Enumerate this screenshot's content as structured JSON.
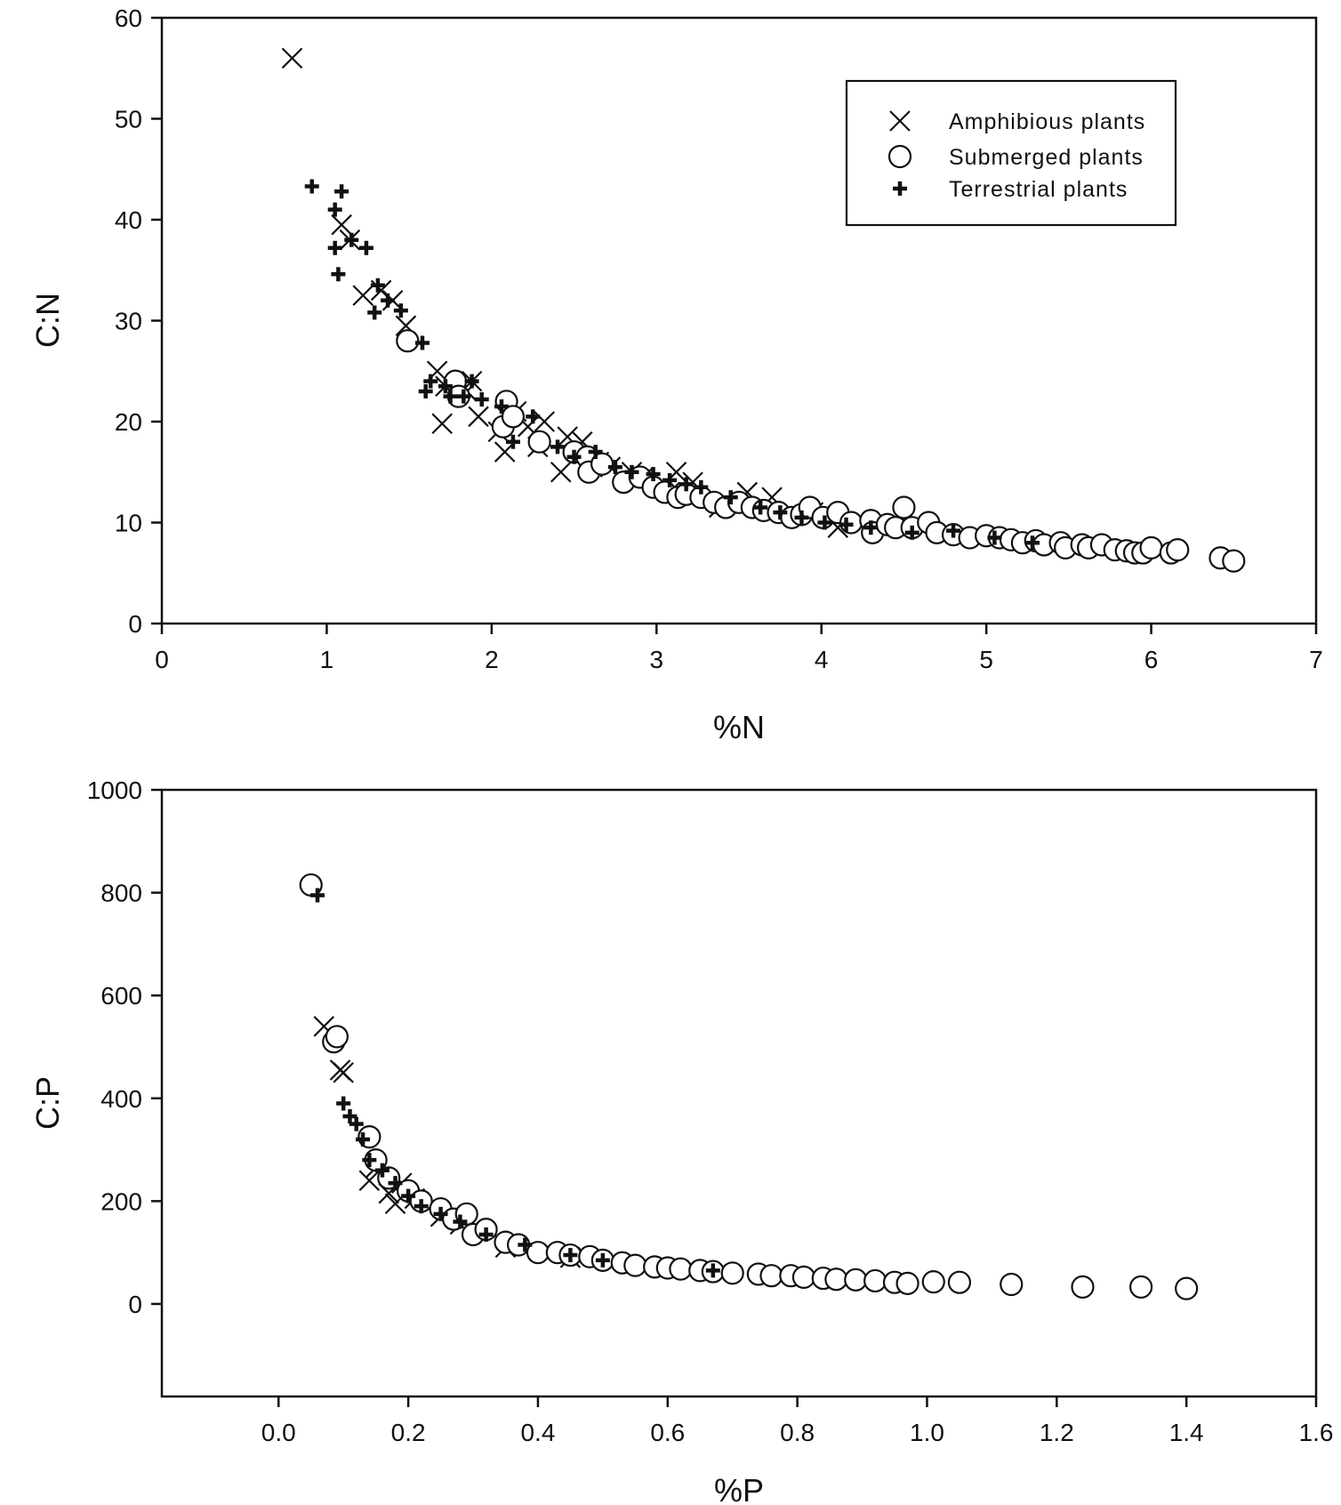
{
  "chart_data": [
    {
      "type": "scatter",
      "xlabel": "%N",
      "ylabel": "C:N",
      "xlim": [
        0,
        7
      ],
      "ylim": [
        0,
        60
      ],
      "xticks": [
        "0",
        "1",
        "2",
        "3",
        "4",
        "5",
        "6",
        "7"
      ],
      "yticks": [
        "0",
        "10",
        "20",
        "30",
        "40",
        "50",
        "60"
      ],
      "grid": false,
      "legend_position": "top-right",
      "series": [
        {
          "name": "Amphibious plants",
          "marker": "x",
          "points": [
            [
              0.79,
              56.0
            ],
            [
              1.09,
              39.5
            ],
            [
              1.14,
              38.0
            ],
            [
              1.22,
              32.5
            ],
            [
              1.33,
              33.0
            ],
            [
              1.4,
              32.0
            ],
            [
              1.48,
              29.5
            ],
            [
              1.67,
              25.0
            ],
            [
              1.7,
              19.8
            ],
            [
              1.72,
              23.5
            ],
            [
              1.85,
              23.0
            ],
            [
              1.88,
              24.0
            ],
            [
              1.92,
              20.5
            ],
            [
              2.04,
              19.0
            ],
            [
              2.08,
              17.0
            ],
            [
              2.15,
              21.0
            ],
            [
              2.22,
              19.5
            ],
            [
              2.28,
              17.5
            ],
            [
              2.32,
              20.0
            ],
            [
              2.42,
              15.0
            ],
            [
              2.46,
              18.5
            ],
            [
              2.55,
              18.0
            ],
            [
              2.65,
              16.0
            ],
            [
              2.72,
              15.5
            ],
            [
              2.85,
              15.0
            ],
            [
              2.92,
              14.5
            ],
            [
              3.08,
              13.0
            ],
            [
              3.12,
              15.0
            ],
            [
              3.22,
              14.0
            ],
            [
              3.38,
              11.5
            ],
            [
              3.55,
              13.0
            ],
            [
              3.7,
              12.5
            ],
            [
              3.95,
              11.0
            ],
            [
              4.1,
              9.5
            ]
          ]
        },
        {
          "name": "Submerged plants",
          "marker": "o",
          "points": [
            [
              1.49,
              28.0
            ],
            [
              1.78,
              24.0
            ],
            [
              1.8,
              22.5
            ],
            [
              2.07,
              19.5
            ],
            [
              2.09,
              22.0
            ],
            [
              2.13,
              20.5
            ],
            [
              2.29,
              18.0
            ],
            [
              2.5,
              17.0
            ],
            [
              2.58,
              16.5
            ],
            [
              2.59,
              15.0
            ],
            [
              2.67,
              15.8
            ],
            [
              2.8,
              14.0
            ],
            [
              2.9,
              14.5
            ],
            [
              2.98,
              13.5
            ],
            [
              3.05,
              13.0
            ],
            [
              3.13,
              12.5
            ],
            [
              3.18,
              12.8
            ],
            [
              3.27,
              12.5
            ],
            [
              3.35,
              12.0
            ],
            [
              3.42,
              11.5
            ],
            [
              3.5,
              12.0
            ],
            [
              3.58,
              11.5
            ],
            [
              3.65,
              11.2
            ],
            [
              3.74,
              11.0
            ],
            [
              3.82,
              10.5
            ],
            [
              3.88,
              10.8
            ],
            [
              3.93,
              11.5
            ],
            [
              4.01,
              10.5
            ],
            [
              4.1,
              11.0
            ],
            [
              4.18,
              10.0
            ],
            [
              4.3,
              10.2
            ],
            [
              4.31,
              9.0
            ],
            [
              4.4,
              9.8
            ],
            [
              4.45,
              9.5
            ],
            [
              4.5,
              11.5
            ],
            [
              4.55,
              9.5
            ],
            [
              4.65,
              10.0
            ],
            [
              4.7,
              9.0
            ],
            [
              4.8,
              8.8
            ],
            [
              4.9,
              8.5
            ],
            [
              5.0,
              8.7
            ],
            [
              5.08,
              8.5
            ],
            [
              5.15,
              8.3
            ],
            [
              5.22,
              8.0
            ],
            [
              5.3,
              8.2
            ],
            [
              5.35,
              7.8
            ],
            [
              5.45,
              8.0
            ],
            [
              5.48,
              7.5
            ],
            [
              5.58,
              7.8
            ],
            [
              5.62,
              7.5
            ],
            [
              5.7,
              7.8
            ],
            [
              5.78,
              7.3
            ],
            [
              5.85,
              7.2
            ],
            [
              5.9,
              7.0
            ],
            [
              5.95,
              7.0
            ],
            [
              6.0,
              7.5
            ],
            [
              6.12,
              7.0
            ],
            [
              6.16,
              7.3
            ],
            [
              6.42,
              6.5
            ],
            [
              6.5,
              6.2
            ]
          ]
        },
        {
          "name": "Terrestrial plants",
          "marker": "+",
          "points": [
            [
              0.91,
              43.3
            ],
            [
              1.05,
              41.0
            ],
            [
              1.09,
              42.8
            ],
            [
              1.05,
              37.2
            ],
            [
              1.07,
              34.6
            ],
            [
              1.15,
              38.0
            ],
            [
              1.24,
              37.2
            ],
            [
              1.29,
              30.8
            ],
            [
              1.31,
              33.5
            ],
            [
              1.37,
              32.0
            ],
            [
              1.45,
              31.0
            ],
            [
              1.58,
              27.8
            ],
            [
              1.6,
              23.0
            ],
            [
              1.63,
              24.0
            ],
            [
              1.72,
              23.5
            ],
            [
              1.75,
              22.5
            ],
            [
              1.83,
              22.5
            ],
            [
              1.88,
              24.0
            ],
            [
              1.94,
              22.2
            ],
            [
              2.06,
              21.5
            ],
            [
              2.13,
              18.0
            ],
            [
              2.25,
              20.5
            ],
            [
              2.4,
              17.5
            ],
            [
              2.5,
              16.5
            ],
            [
              2.63,
              17.0
            ],
            [
              2.75,
              15.5
            ],
            [
              2.85,
              15.0
            ],
            [
              2.98,
              14.8
            ],
            [
              3.08,
              14.2
            ],
            [
              3.18,
              13.8
            ],
            [
              3.27,
              13.5
            ],
            [
              3.45,
              12.5
            ],
            [
              3.63,
              11.5
            ],
            [
              3.75,
              11.0
            ],
            [
              3.88,
              10.5
            ],
            [
              4.02,
              10.0
            ],
            [
              4.15,
              9.8
            ],
            [
              4.3,
              9.5
            ],
            [
              4.55,
              9.0
            ],
            [
              4.8,
              9.2
            ],
            [
              5.05,
              8.5
            ],
            [
              5.28,
              8.0
            ]
          ]
        }
      ]
    },
    {
      "type": "scatter",
      "xlabel": "%P",
      "ylabel": "C:P",
      "xlim": [
        -0.18,
        1.6
      ],
      "ylim": [
        -180,
        1000
      ],
      "xticks": [
        "0.0",
        "0.2",
        "0.4",
        "0.6",
        "0.8",
        "1.0",
        "1.2",
        "1.4",
        "1.6"
      ],
      "yticks": [
        "0",
        "200",
        "400",
        "600",
        "800",
        "1000"
      ],
      "grid": false,
      "series": [
        {
          "name": "Amphibious plants",
          "marker": "x",
          "points": [
            [
              0.07,
              540
            ],
            [
              0.095,
              455
            ],
            [
              0.1,
              450
            ],
            [
              0.14,
              240
            ],
            [
              0.15,
              265
            ],
            [
              0.17,
              215
            ],
            [
              0.18,
              195
            ],
            [
              0.19,
              235
            ],
            [
              0.21,
              205
            ],
            [
              0.25,
              170
            ],
            [
              0.28,
              155
            ],
            [
              0.35,
              110
            ],
            [
              0.45,
              90
            ]
          ]
        },
        {
          "name": "Submerged plants",
          "marker": "o",
          "points": [
            [
              0.05,
              815
            ],
            [
              0.085,
              510
            ],
            [
              0.09,
              520
            ],
            [
              0.14,
              325
            ],
            [
              0.15,
              280
            ],
            [
              0.17,
              245
            ],
            [
              0.2,
              220
            ],
            [
              0.22,
              200
            ],
            [
              0.25,
              185
            ],
            [
              0.27,
              165
            ],
            [
              0.29,
              175
            ],
            [
              0.3,
              135
            ],
            [
              0.32,
              145
            ],
            [
              0.35,
              120
            ],
            [
              0.37,
              115
            ],
            [
              0.4,
              100
            ],
            [
              0.43,
              100
            ],
            [
              0.45,
              95
            ],
            [
              0.48,
              92
            ],
            [
              0.5,
              85
            ],
            [
              0.53,
              80
            ],
            [
              0.55,
              75
            ],
            [
              0.58,
              72
            ],
            [
              0.6,
              70
            ],
            [
              0.62,
              68
            ],
            [
              0.65,
              65
            ],
            [
              0.67,
              63
            ],
            [
              0.7,
              60
            ],
            [
              0.74,
              58
            ],
            [
              0.76,
              55
            ],
            [
              0.79,
              55
            ],
            [
              0.81,
              52
            ],
            [
              0.84,
              50
            ],
            [
              0.86,
              48
            ],
            [
              0.89,
              47
            ],
            [
              0.92,
              45
            ],
            [
              0.95,
              42
            ],
            [
              0.97,
              40
            ],
            [
              1.01,
              43
            ],
            [
              1.05,
              42
            ],
            [
              1.13,
              38
            ],
            [
              1.24,
              33
            ],
            [
              1.33,
              33
            ],
            [
              1.4,
              30
            ]
          ]
        },
        {
          "name": "Terrestrial plants",
          "marker": "+",
          "points": [
            [
              0.06,
              795
            ],
            [
              0.1,
              390
            ],
            [
              0.11,
              365
            ],
            [
              0.12,
              350
            ],
            [
              0.13,
              320
            ],
            [
              0.14,
              280
            ],
            [
              0.16,
              260
            ],
            [
              0.18,
              235
            ],
            [
              0.2,
              210
            ],
            [
              0.22,
              190
            ],
            [
              0.25,
              175
            ],
            [
              0.28,
              160
            ],
            [
              0.32,
              135
            ],
            [
              0.38,
              115
            ],
            [
              0.45,
              95
            ],
            [
              0.5,
              85
            ],
            [
              0.67,
              65
            ]
          ]
        }
      ]
    }
  ]
}
